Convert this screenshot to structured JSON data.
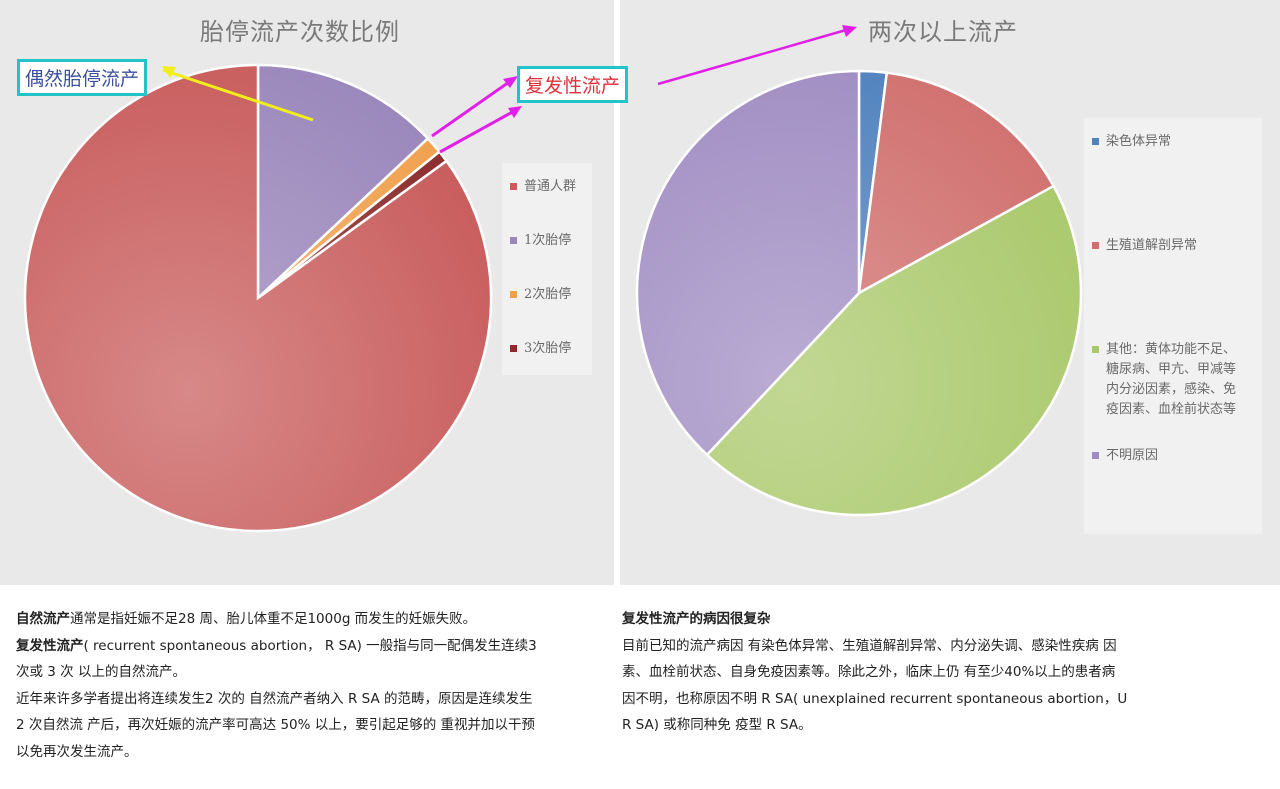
{
  "chart_data": [
    {
      "type": "pie",
      "title": "胎停流产次数比例",
      "categories": [
        "普通人群",
        "1次胎停",
        "2次胎停",
        "3次胎停"
      ],
      "values": [
        85,
        13,
        1.2,
        0.8
      ],
      "colors": [
        "#c85a5a",
        "#9a86bb",
        "#f0a04c",
        "#8a2a2a"
      ],
      "legend_position": "right",
      "annotations": [
        "偶然胎停流产",
        "复发性流产"
      ]
    },
    {
      "type": "pie",
      "title": "两次以上流产",
      "categories": [
        "染色体异常",
        "生殖道解剖异常",
        "其他：黄体功能不足、糖尿病、甲亢、甲减等内分泌因素，感染、免疫因素、血栓前状态等",
        "不明原因"
      ],
      "values": [
        2,
        15,
        45,
        38
      ],
      "colors": [
        "#4f81bd",
        "#d0706e",
        "#a9c86a",
        "#9f8cc2"
      ],
      "legend_position": "right"
    }
  ],
  "left_chart": {
    "title": "胎停流产次数比例",
    "legend": [
      "普通人群",
      "1次胎停",
      "2次胎停",
      "3次胎停"
    ],
    "callout_sporadic": "偶然胎停流产",
    "callout_recurrent": "复发性流产"
  },
  "right_chart": {
    "title": "两次以上流产",
    "legend": [
      "染色体异常",
      "生殖道解剖异常",
      "其他：黄体功能不足、",
      "糖尿病、甲亢、甲减等",
      "内分泌因素，感染、免",
      "疫因素、血栓前状态等",
      "不明原因"
    ]
  },
  "text_left": {
    "term1": "自然流产",
    "def1": "通常是指妊娠不足28 周、胎儿体重不足1000g 而发生的妊娠失败。",
    "term2": "复发性流产",
    "def2a": "( recurrent spontaneous abortion， R SA) 一般指与同一配偶发生连续3",
    "def2b": "次或 3 次 以上的自然流产。",
    "para3a": "近年来许多学者提出将连续发生2 次的 自然流产者纳入  R SA 的范畴，原因是连续发生",
    "para3b": "2 次自然流 产后，再次妊娠的流产率可高达 50% 以上，要引起足够的 重视并加以干预",
    "para3c": "以免再次发生流产。"
  },
  "text_right": {
    "heading": "复发性流产的病因很复杂",
    "line1": "目前已知的流产病因 有染色体异常、生殖道解剖异常、内分泌失调、感染性疾病 因",
    "line2": "素、血栓前状态、自身免疫因素等。除此之外，临床上仍 有至少40%以上的患者病",
    "line3": "因不明，也称原因不明  R SA( unexplained recurrent spontaneous abortion，U",
    "line4": "R SA) 或称同种免 疫型  R SA。"
  },
  "colors": {
    "callout_border": "#22c4c8",
    "callout_sporadic_text": "#3c4fa0",
    "callout_recurrent_text": "#e0303a",
    "arrow_yellow": "#f2ee1a",
    "arrow_magenta": "#e020e8"
  }
}
